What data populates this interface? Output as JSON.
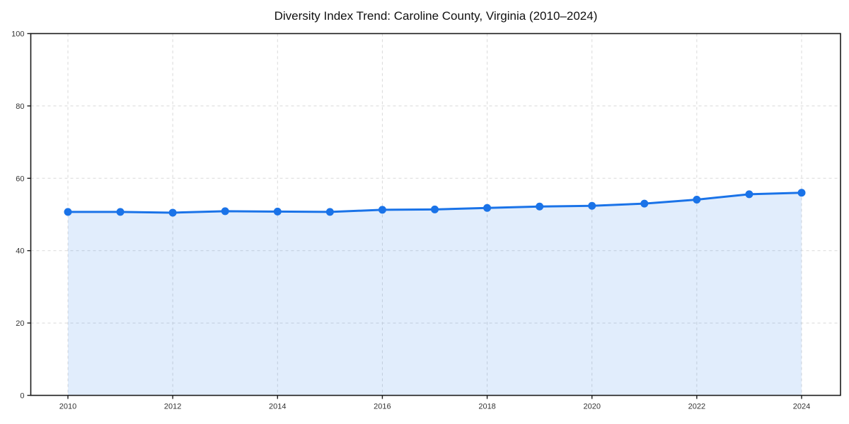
{
  "chart_data": {
    "type": "line",
    "title": "Diversity Index Trend: Caroline County, Virginia (2010–2024)",
    "xlabel": "",
    "ylabel": "",
    "x": [
      2010,
      2011,
      2012,
      2013,
      2014,
      2015,
      2016,
      2017,
      2018,
      2019,
      2020,
      2021,
      2022,
      2023,
      2024
    ],
    "series": [
      {
        "name": "Diversity Index",
        "values": [
          50.7,
          50.7,
          50.5,
          50.9,
          50.8,
          50.7,
          51.3,
          51.4,
          51.8,
          52.2,
          52.4,
          53.0,
          54.1,
          55.6,
          56.0
        ]
      }
    ],
    "xticks": [
      2010,
      2012,
      2014,
      2016,
      2018,
      2020,
      2022,
      2024
    ],
    "yticks": [
      0,
      20,
      40,
      60,
      80,
      100
    ],
    "ylim": [
      0,
      100
    ],
    "grid": true,
    "grid_style": "dashed",
    "legend": false,
    "markers": true,
    "area_fill": true,
    "colors": {
      "line": "#1a73e8",
      "marker": "#1a73e8",
      "fill": "rgba(26,115,232,0.13)",
      "grid": "#d9d9d9",
      "spine": "#1a1a1a",
      "tick_label": "#333333",
      "title": "#111111",
      "background": "#ffffff"
    }
  }
}
